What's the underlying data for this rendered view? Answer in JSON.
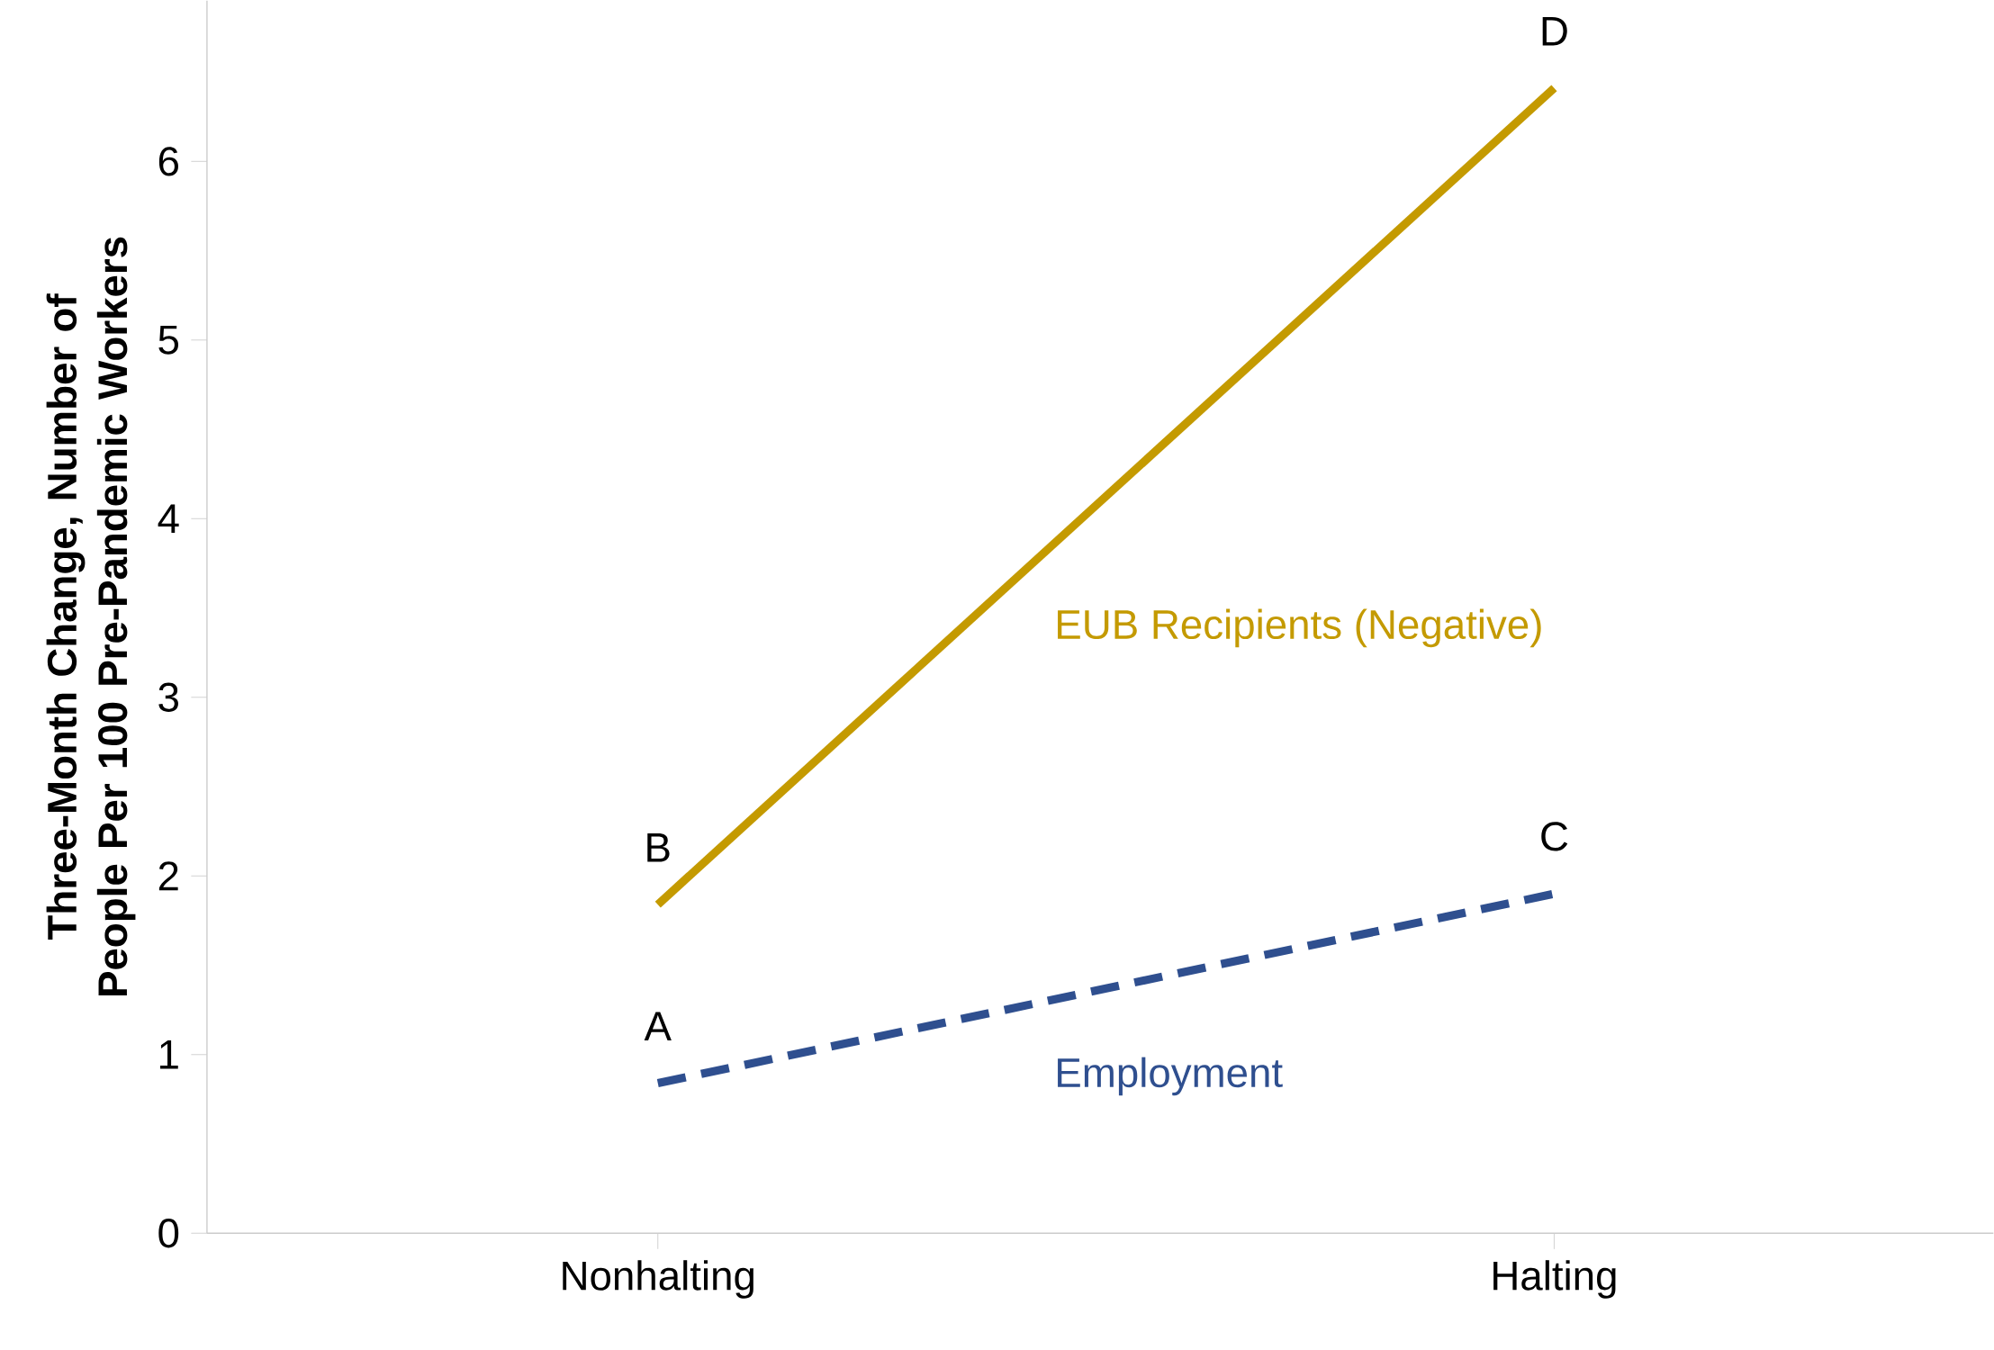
{
  "chart_data": {
    "type": "line",
    "ylabel": "Three-Month Change, Number of People Per 100 Pre-Pandemic Workers",
    "categories": [
      "Nonhalting",
      "Halting"
    ],
    "series": [
      {
        "name": "EUB Recipients (Negative)",
        "color": "#c49a00",
        "values": [
          1.84,
          6.41
        ],
        "line_style": "solid"
      },
      {
        "name": "Employment",
        "color": "#2f4f8f",
        "values": [
          0.84,
          1.9
        ],
        "line_style": "dashed"
      }
    ],
    "ylim": [
      0,
      6.9
    ],
    "yticks": [
      0,
      1,
      2,
      3,
      4,
      5,
      6
    ],
    "marker": "none",
    "grid": false,
    "legend": false,
    "annotations": [
      {
        "text": "A",
        "x": "Nonhalting",
        "y": 0.84
      },
      {
        "text": "B",
        "x": "Nonhalting",
        "y": 1.84
      },
      {
        "text": "C",
        "x": "Halting",
        "y": 1.9
      },
      {
        "text": "D",
        "x": "Halting",
        "y": 6.41
      }
    ]
  }
}
